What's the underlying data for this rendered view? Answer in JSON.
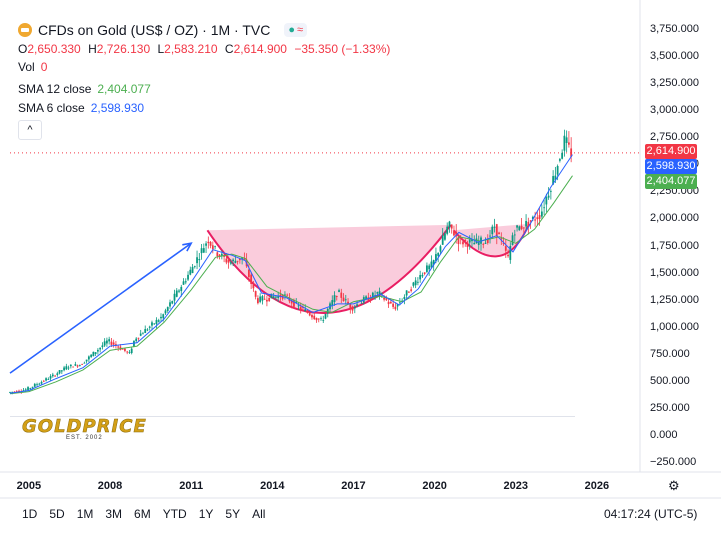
{
  "header": {
    "title": "CFDs on Gold (US$ / OZ) · 1M · TVC",
    "badge_dot": "●",
    "badge_wave": "≈"
  },
  "ohlc": {
    "o_label": "O",
    "o": "2,650.330",
    "h_label": "H",
    "h": "2,726.130",
    "l_label": "L",
    "l": "2,583.210",
    "c_label": "C",
    "c": "2,614.900",
    "change": "−35.350 (−1.33%)"
  },
  "vol": {
    "label": "Vol",
    "value": "0"
  },
  "sma12": {
    "label": "SMA 12 close",
    "value": "2,404.077",
    "color": "#4caf50"
  },
  "sma6": {
    "label": "SMA 6 close",
    "value": "2,598.930",
    "color": "#2962ff"
  },
  "collapse_glyph": "^",
  "price_tags": [
    {
      "value": "2,614.900",
      "color": "#f23645"
    },
    {
      "value": "2,598.930",
      "color": "#2962ff"
    },
    {
      "value": "2,404.077",
      "color": "#4caf50"
    }
  ],
  "ranges": [
    "1D",
    "5D",
    "1M",
    "3M",
    "6M",
    "YTD",
    "1Y",
    "5Y",
    "All"
  ],
  "clock": "04:17:24 (UTC-5)",
  "watermark": {
    "brand": "GOLDPRICE",
    "est": "EST. 2002"
  },
  "chart_data": {
    "type": "candlestick",
    "title": "CFDs on Gold (US$ / OZ) · 1M · TVC",
    "ylim": [
      -250,
      3750
    ],
    "xlim": [
      2004.3,
      2027.3
    ],
    "y_ticks": [
      "3,750.000",
      "3,500.000",
      "3,250.000",
      "3,000.000",
      "2,750.000",
      "2,500.000",
      "2,250.000",
      "2,000.000",
      "1,750.000",
      "1,500.000",
      "1,250.000",
      "1,000.000",
      "750.000",
      "500.000",
      "250.000",
      "0.000",
      "−250.000"
    ],
    "x_ticks": [
      "2005",
      "2008",
      "2011",
      "2014",
      "2017",
      "2020",
      "2023",
      "2026"
    ],
    "price_path": [
      [
        2004.3,
        400
      ],
      [
        2005,
        430
      ],
      [
        2006,
        560
      ],
      [
        2006.5,
        640
      ],
      [
        2007,
        660
      ],
      [
        2008,
        880
      ],
      [
        2008.8,
        760
      ],
      [
        2009,
        900
      ],
      [
        2010,
        1100
      ],
      [
        2011,
        1500
      ],
      [
        2011.7,
        1820
      ],
      [
        2012,
        1700
      ],
      [
        2012.5,
        1600
      ],
      [
        2013,
        1650
      ],
      [
        2013.5,
        1250
      ],
      [
        2014,
        1280
      ],
      [
        2014.5,
        1300
      ],
      [
        2015,
        1200
      ],
      [
        2015.9,
        1060
      ],
      [
        2016.5,
        1330
      ],
      [
        2017,
        1180
      ],
      [
        2017.5,
        1260
      ],
      [
        2018,
        1320
      ],
      [
        2018.6,
        1180
      ],
      [
        2019,
        1300
      ],
      [
        2019.6,
        1500
      ],
      [
        2020,
        1580
      ],
      [
        2020.6,
        1950
      ],
      [
        2021,
        1800
      ],
      [
        2021.5,
        1780
      ],
      [
        2022,
        1800
      ],
      [
        2022.3,
        1940
      ],
      [
        2022.8,
        1640
      ],
      [
        2023,
        1900
      ],
      [
        2023.5,
        1960
      ],
      [
        2024,
        2050
      ],
      [
        2024.5,
        2400
      ],
      [
        2024.9,
        2740
      ],
      [
        2025.1,
        2615
      ]
    ],
    "sma12_path": [
      [
        2004.3,
        390
      ],
      [
        2005,
        410
      ],
      [
        2006,
        500
      ],
      [
        2007,
        610
      ],
      [
        2008,
        790
      ],
      [
        2009,
        830
      ],
      [
        2010,
        1050
      ],
      [
        2011,
        1350
      ],
      [
        2011.9,
        1650
      ],
      [
        2012.5,
        1680
      ],
      [
        2013,
        1640
      ],
      [
        2013.8,
        1380
      ],
      [
        2014.5,
        1290
      ],
      [
        2015.5,
        1170
      ],
      [
        2016.2,
        1140
      ],
      [
        2017,
        1240
      ],
      [
        2018,
        1290
      ],
      [
        2018.8,
        1240
      ],
      [
        2019.5,
        1330
      ],
      [
        2020.2,
        1600
      ],
      [
        2020.9,
        1840
      ],
      [
        2021.7,
        1800
      ],
      [
        2022.4,
        1840
      ],
      [
        2023,
        1780
      ],
      [
        2023.7,
        1910
      ],
      [
        2024.4,
        2150
      ],
      [
        2025.1,
        2404
      ]
    ],
    "sma6_path": [
      [
        2004.3,
        395
      ],
      [
        2005,
        420
      ],
      [
        2006,
        530
      ],
      [
        2007,
        630
      ],
      [
        2008,
        830
      ],
      [
        2009,
        860
      ],
      [
        2010,
        1080
      ],
      [
        2011,
        1420
      ],
      [
        2011.8,
        1720
      ],
      [
        2012.5,
        1670
      ],
      [
        2013,
        1620
      ],
      [
        2013.6,
        1320
      ],
      [
        2014.5,
        1280
      ],
      [
        2015.5,
        1140
      ],
      [
        2016.4,
        1220
      ],
      [
        2017,
        1220
      ],
      [
        2018,
        1310
      ],
      [
        2018.7,
        1210
      ],
      [
        2019.4,
        1360
      ],
      [
        2020.4,
        1750
      ],
      [
        2020.9,
        1880
      ],
      [
        2021.6,
        1790
      ],
      [
        2022.3,
        1850
      ],
      [
        2022.9,
        1700
      ],
      [
        2023.5,
        1940
      ],
      [
        2024.3,
        2300
      ],
      [
        2025.1,
        2599
      ]
    ],
    "cup_left": [
      2011.6,
      1900
    ],
    "cup_right": [
      2020.6,
      1950
    ],
    "cup_bottom": [
      2015.8,
      1060
    ],
    "handle_left": [
      2020.7,
      1900
    ],
    "handle_right": [
      2023.5,
      1960
    ],
    "handle_bottom": [
      2022.5,
      1620
    ],
    "trend_arrow": {
      "from": [
        2004.3,
        580
      ],
      "to": [
        2011.0,
        1780
      ]
    },
    "last_price_line": 2614.9
  }
}
